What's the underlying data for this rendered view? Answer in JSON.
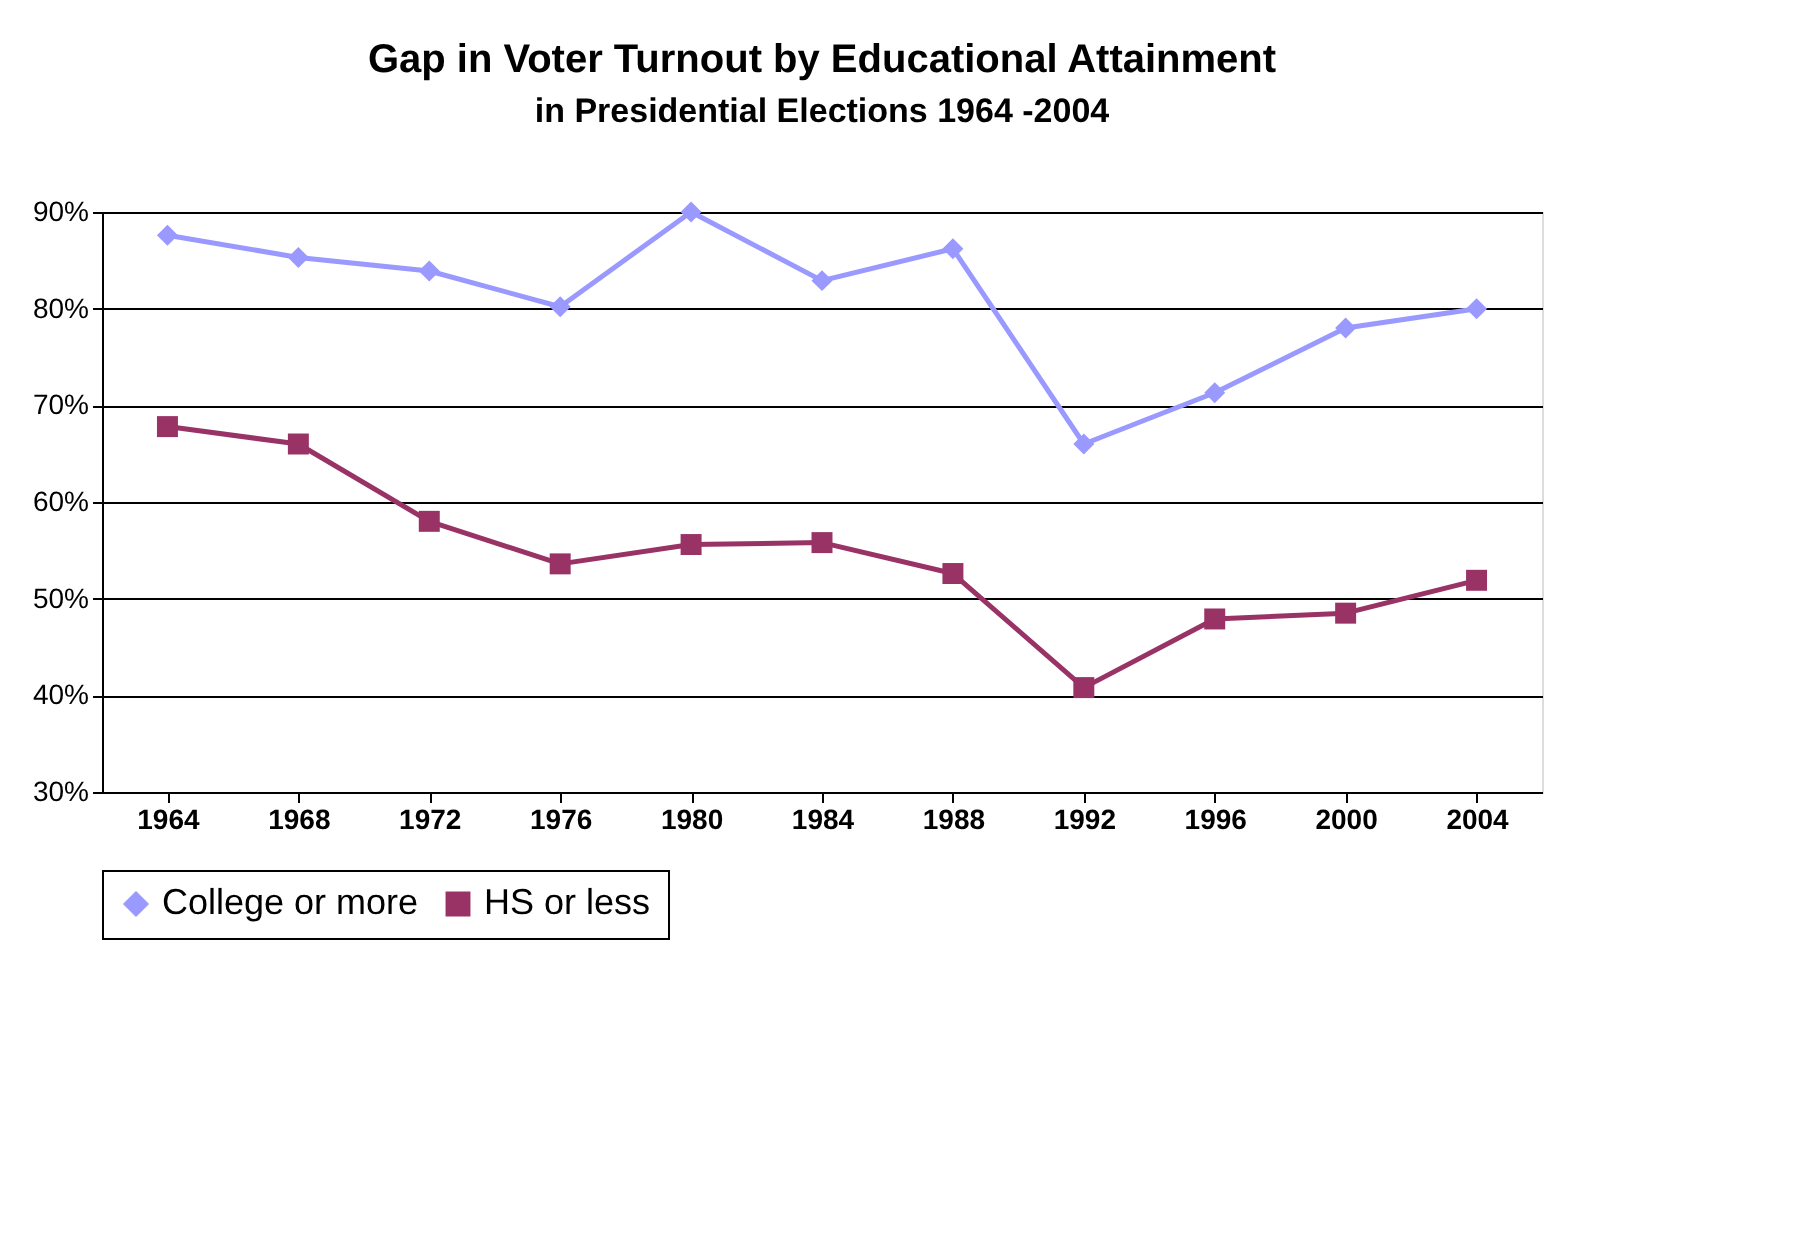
{
  "chart_data": {
    "type": "line",
    "title": "Gap in Voter Turnout by Educational Attainment",
    "subtitle": "in Presidential Elections 1964 -2004",
    "categories": [
      "1964",
      "1968",
      "1972",
      "1976",
      "1980",
      "1984",
      "1988",
      "1992",
      "1996",
      "2000",
      "2004"
    ],
    "series": [
      {
        "name": "College or more",
        "color": "#9999ff",
        "marker": "diamond",
        "values": [
          87.6,
          85.3,
          83.9,
          80.2,
          90.0,
          82.9,
          86.2,
          66.0,
          71.3,
          78.0,
          80.0
        ]
      },
      {
        "name": "HS or less",
        "color": "#993366",
        "marker": "square",
        "values": [
          67.8,
          66.0,
          58.0,
          53.6,
          55.6,
          55.8,
          52.6,
          40.8,
          47.9,
          48.5,
          51.9
        ]
      }
    ],
    "ylim": [
      30,
      90
    ],
    "yticks": [
      {
        "value": 30,
        "label": "30%"
      },
      {
        "value": 40,
        "label": "40%"
      },
      {
        "value": 50,
        "label": "50%"
      },
      {
        "value": 60,
        "label": "60%"
      },
      {
        "value": 70,
        "label": "70%"
      },
      {
        "value": 80,
        "label": "80%"
      },
      {
        "value": 90,
        "label": "90%"
      }
    ],
    "grid": "y",
    "legend": "bottom",
    "line_style": "solid"
  }
}
